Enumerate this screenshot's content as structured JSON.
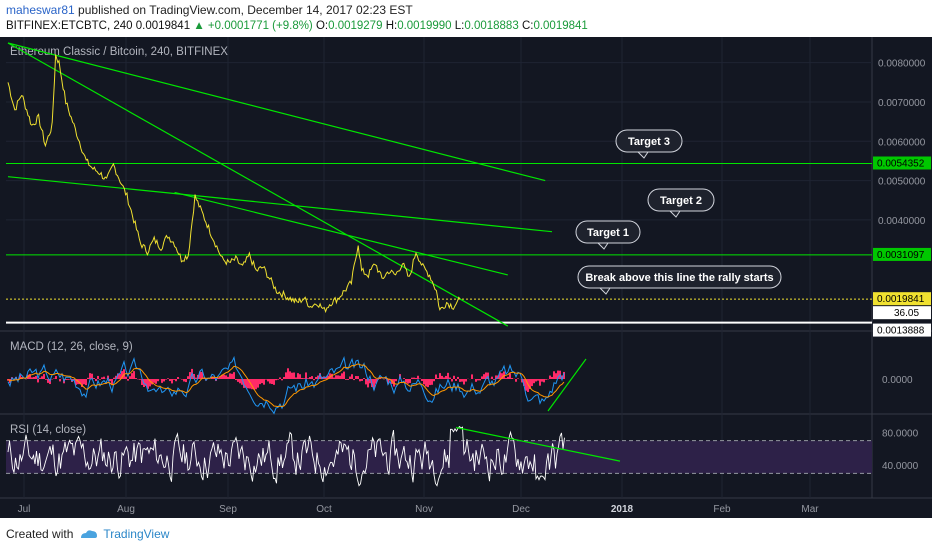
{
  "header": {
    "author": "maheswar81",
    "published": "published on TradingView.com, December 14, 2017 02:23 EST",
    "symbol": "BITFINEX:ETCBTC, 240",
    "last": "0.0019841",
    "change": "+0.0001771 (+9.8%)",
    "o_label": "O:",
    "o_value": "0.0019279",
    "h_label": "H:",
    "h_value": "0.0019990",
    "l_label": "L:",
    "l_value": "0.0018883",
    "c_label": "C:",
    "c_value": "0.0019841"
  },
  "footer": {
    "created_with": "Created with",
    "brand": "TradingView"
  },
  "chart_data": [
    {
      "type": "line",
      "title": "Ethereum Classic / Bitcoin, 240, BITFINEX",
      "x_ticks": [
        "Jul",
        "Aug",
        "Sep",
        "Oct",
        "Nov",
        "Dec",
        "2018",
        "Feb",
        "Mar"
      ],
      "y_ticks": [
        "0.0080000",
        "0.0070000",
        "0.0060000",
        "0.0050000",
        "0.0040000"
      ],
      "ylim": [
        0.0012,
        0.0085
      ],
      "price_series": [
        [
          0,
          0.0075
        ],
        [
          2,
          0.0068
        ],
        [
          4,
          0.0072
        ],
        [
          7,
          0.0064
        ],
        [
          9,
          0.0066
        ],
        [
          11,
          0.0059
        ],
        [
          13,
          0.0064
        ],
        [
          14,
          0.0082
        ],
        [
          15,
          0.008
        ],
        [
          17,
          0.007
        ],
        [
          19,
          0.0065
        ],
        [
          21,
          0.006
        ],
        [
          23,
          0.0055
        ],
        [
          25,
          0.0053
        ],
        [
          27,
          0.0052
        ],
        [
          29,
          0.005
        ],
        [
          31,
          0.0054
        ],
        [
          33,
          0.005
        ],
        [
          35,
          0.0046
        ],
        [
          37,
          0.004
        ],
        [
          39,
          0.0034
        ],
        [
          41,
          0.0032
        ],
        [
          43,
          0.0035
        ],
        [
          45,
          0.0033
        ],
        [
          47,
          0.0036
        ],
        [
          49,
          0.0034
        ],
        [
          51,
          0.003
        ],
        [
          53,
          0.0031
        ],
        [
          55,
          0.0046
        ],
        [
          57,
          0.0042
        ],
        [
          59,
          0.0038
        ],
        [
          61,
          0.0034
        ],
        [
          63,
          0.003
        ],
        [
          65,
          0.0029
        ],
        [
          67,
          0.003
        ],
        [
          69,
          0.0028
        ],
        [
          71,
          0.0031
        ],
        [
          73,
          0.0027
        ],
        [
          75,
          0.0028
        ],
        [
          77,
          0.0025
        ],
        [
          79,
          0.0022
        ],
        [
          81,
          0.0021
        ],
        [
          83,
          0.002
        ],
        [
          85,
          0.0019
        ],
        [
          87,
          0.002
        ],
        [
          89,
          0.0018
        ],
        [
          91,
          0.0019
        ],
        [
          93,
          0.0017
        ],
        [
          95,
          0.0019
        ],
        [
          97,
          0.002
        ],
        [
          99,
          0.0022
        ],
        [
          101,
          0.0024
        ],
        [
          103,
          0.0034
        ],
        [
          104,
          0.0027
        ],
        [
          106,
          0.0026
        ],
        [
          108,
          0.0029
        ],
        [
          110,
          0.0025
        ],
        [
          112,
          0.0027
        ],
        [
          114,
          0.0026
        ],
        [
          116,
          0.0029
        ],
        [
          118,
          0.0025
        ],
        [
          120,
          0.0032
        ],
        [
          122,
          0.0028
        ],
        [
          124,
          0.0026
        ],
        [
          126,
          0.0022
        ],
        [
          127,
          0.0017
        ],
        [
          129,
          0.0019
        ],
        [
          131,
          0.0018
        ],
        [
          133,
          0.0019841
        ]
      ],
      "horizontal_levels": [
        {
          "value": 0.0054352,
          "label": "0.0054352",
          "color": "#00e600"
        },
        {
          "value": 0.0031097,
          "label": "0.0031097",
          "color": "#00e600"
        },
        {
          "value": 0.0019841,
          "label": "0.0019841",
          "color": "#f0e130"
        },
        {
          "value": 0.0013888,
          "label": "0.0013888",
          "color": "#ffffff"
        }
      ],
      "trend_lines": [
        {
          "from": [
            0,
            0.0085
          ],
          "to": [
            158,
            0.005
          ]
        },
        {
          "from": [
            0,
            0.0085
          ],
          "to": [
            147,
            0.0013
          ]
        },
        {
          "from": [
            0,
            0.0051
          ],
          "to": [
            160,
            0.0037
          ]
        },
        {
          "from": [
            49,
            0.0047
          ],
          "to": [
            147,
            0.0026
          ]
        }
      ],
      "extra_label": "36.05",
      "annotations": [
        "Target 3",
        "Target 2",
        "Target 1",
        "Break above this line the rally starts"
      ]
    },
    {
      "type": "line",
      "title": "MACD (12, 26, close, 9)",
      "y_ticks": [
        "0.0000"
      ],
      "colors": {
        "macd": "#2196f3",
        "signal": "#ff9800",
        "histogram": "#ff2a68"
      }
    },
    {
      "type": "line",
      "title": "RSI (14, close)",
      "y_ticks": [
        "80.0000",
        "40.0000"
      ],
      "bands": [
        70,
        30
      ],
      "ylim": [
        0,
        100
      ]
    }
  ],
  "colors": {
    "background": "#131722",
    "price": "#f0e130",
    "trend": "#00e600",
    "rsi_band": "#2d2148",
    "label_bg": "#1e222d"
  }
}
